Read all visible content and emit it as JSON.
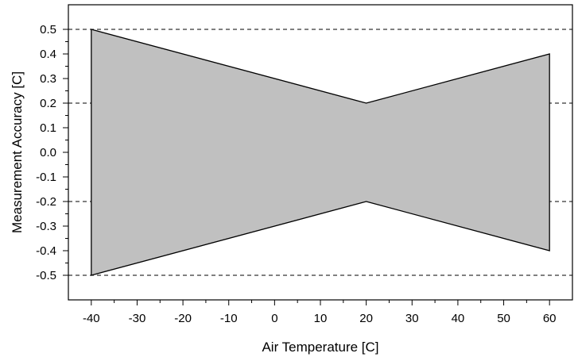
{
  "chart_data": {
    "type": "area",
    "title": "",
    "xlabel": "Air Temperature [C]",
    "ylabel": "Measurement Accuracy [C]",
    "xlim": [
      -45,
      65
    ],
    "ylim": [
      -0.6,
      0.6
    ],
    "x_ticks": [
      -40,
      -30,
      -20,
      -10,
      0,
      10,
      20,
      30,
      40,
      50,
      60
    ],
    "y_ticks": [
      0.5,
      0.4,
      0.3,
      0.2,
      0.1,
      0.0,
      -0.1,
      -0.2,
      -0.3,
      -0.4,
      -0.5
    ],
    "x_tick_labels": [
      "-40",
      "-30",
      "-20",
      "-10",
      "0",
      "10",
      "20",
      "30",
      "40",
      "50",
      "60"
    ],
    "y_tick_labels": [
      "0.5",
      "0.4",
      "0.3",
      "0.2",
      "0.1",
      "0.0",
      "-0.1",
      "-0.2",
      "-0.3",
      "-0.4",
      "-0.5"
    ],
    "series": [
      {
        "values_upper": [
          [
            -40,
            0.5
          ],
          [
            20,
            0.2
          ],
          [
            60,
            0.4
          ]
        ],
        "values_lower": [
          [
            -40,
            -0.5
          ],
          [
            20,
            -0.2
          ],
          [
            60,
            -0.4
          ]
        ]
      }
    ],
    "reference_lines": [
      0.5,
      0.2,
      -0.2,
      -0.5
    ],
    "fill_color": "#c0c0c0",
    "line_color": "#000000",
    "grid": false
  }
}
